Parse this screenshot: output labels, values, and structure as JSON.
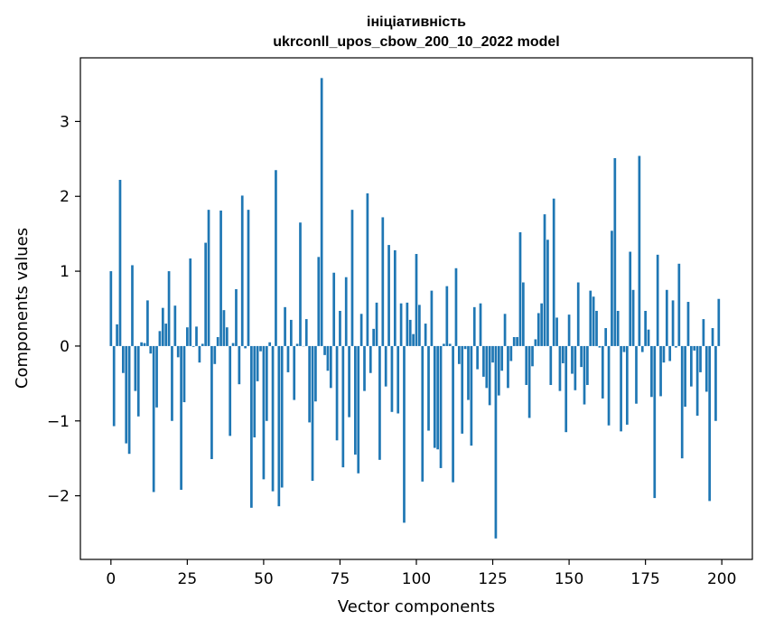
{
  "chart_data": {
    "type": "bar",
    "title": "ініціативність",
    "subtitle": "ukrconll_upos_cbow_200_10_2022 model",
    "xlabel": "Vector components",
    "ylabel": "Components values",
    "xlim": [
      -10,
      210
    ],
    "ylim": [
      -2.85,
      3.85
    ],
    "xticks": [
      0,
      25,
      50,
      75,
      100,
      125,
      150,
      175,
      200
    ],
    "yticks": [
      -2,
      -1,
      0,
      1,
      2,
      3
    ],
    "ytick_labels": [
      "−2",
      "−1",
      "0",
      "1",
      "2",
      "3"
    ],
    "bar_color": "#1f77b4",
    "grid": false,
    "x": [
      0,
      1,
      2,
      3,
      4,
      5,
      6,
      7,
      8,
      9,
      10,
      11,
      12,
      13,
      14,
      15,
      16,
      17,
      18,
      19,
      20,
      21,
      22,
      23,
      24,
      25,
      26,
      27,
      28,
      29,
      30,
      31,
      32,
      33,
      34,
      35,
      36,
      37,
      38,
      39,
      40,
      41,
      42,
      43,
      44,
      45,
      46,
      47,
      48,
      49,
      50,
      51,
      52,
      53,
      54,
      55,
      56,
      57,
      58,
      59,
      60,
      61,
      62,
      63,
      64,
      65,
      66,
      67,
      68,
      69,
      70,
      71,
      72,
      73,
      74,
      75,
      76,
      77,
      78,
      79,
      80,
      81,
      82,
      83,
      84,
      85,
      86,
      87,
      88,
      89,
      90,
      91,
      92,
      93,
      94,
      95,
      96,
      97,
      98,
      99,
      100,
      101,
      102,
      103,
      104,
      105,
      106,
      107,
      108,
      109,
      110,
      111,
      112,
      113,
      114,
      115,
      116,
      117,
      118,
      119,
      120,
      121,
      122,
      123,
      124,
      125,
      126,
      127,
      128,
      129,
      130,
      131,
      132,
      133,
      134,
      135,
      136,
      137,
      138,
      139,
      140,
      141,
      142,
      143,
      144,
      145,
      146,
      147,
      148,
      149,
      150,
      151,
      152,
      153,
      154,
      155,
      156,
      157,
      158,
      159,
      160,
      161,
      162,
      163,
      164,
      165,
      166,
      167,
      168,
      169,
      170,
      171,
      172,
      173,
      174,
      175,
      176,
      177,
      178,
      179,
      180,
      181,
      182,
      183,
      184,
      185,
      186,
      187,
      188,
      189,
      190,
      191,
      192,
      193,
      194,
      195,
      196,
      197,
      198,
      199
    ],
    "values": [
      1.0,
      -1.07,
      0.29,
      2.22,
      -0.36,
      -1.3,
      -1.44,
      1.08,
      -0.6,
      -0.94,
      0.05,
      0.04,
      0.61,
      -0.1,
      -1.95,
      -0.82,
      0.2,
      0.51,
      0.3,
      1.0,
      -1.0,
      0.54,
      -0.15,
      -1.92,
      -0.75,
      0.25,
      1.17,
      -0.01,
      0.26,
      -0.22,
      0.03,
      1.38,
      1.82,
      -1.51,
      -0.24,
      0.12,
      1.81,
      0.48,
      0.25,
      -1.2,
      0.04,
      0.76,
      -0.51,
      2.01,
      -0.03,
      1.82,
      -2.16,
      -1.22,
      -0.47,
      -0.07,
      -1.78,
      -1.0,
      0.05,
      -1.94,
      2.35,
      -2.14,
      -1.89,
      0.52,
      -0.35,
      0.35,
      -0.72,
      0.03,
      1.65,
      0.0,
      0.36,
      -1.02,
      -1.8,
      -0.74,
      1.19,
      3.58,
      -0.12,
      -0.33,
      -0.56,
      0.98,
      -1.26,
      0.47,
      -1.62,
      0.92,
      -0.95,
      1.82,
      -1.45,
      -1.7,
      0.43,
      -0.6,
      2.04,
      -0.36,
      0.23,
      0.58,
      -1.52,
      1.72,
      -0.54,
      1.35,
      -0.88,
      1.28,
      -0.9,
      0.57,
      -2.36,
      0.58,
      0.35,
      0.16,
      1.23,
      0.55,
      -1.81,
      0.3,
      -1.13,
      0.74,
      -1.36,
      -1.38,
      -1.63,
      0.03,
      0.8,
      0.03,
      -1.82,
      1.04,
      -0.24,
      -1.17,
      -0.04,
      -0.72,
      -1.33,
      0.52,
      -0.31,
      0.57,
      -0.41,
      -0.56,
      -0.79,
      -0.22,
      -2.57,
      -0.66,
      -0.33,
      0.43,
      -0.56,
      -0.2,
      0.12,
      0.12,
      1.52,
      0.85,
      -0.52,
      -0.96,
      -0.27,
      0.09,
      0.44,
      0.57,
      1.76,
      1.42,
      -0.52,
      1.97,
      0.38,
      -0.6,
      -0.23,
      -1.15,
      0.42,
      -0.37,
      -0.59,
      0.85,
      -0.28,
      -0.78,
      -0.52,
      0.74,
      0.66,
      0.47,
      -0.02,
      -0.7,
      0.24,
      -1.06,
      1.54,
      2.51,
      0.47,
      -1.14,
      -0.08,
      -1.05,
      1.26,
      0.75,
      -0.77,
      2.54,
      -0.08,
      0.47,
      0.22,
      -0.68,
      -2.03,
      1.22,
      -0.67,
      -0.22,
      0.75,
      -0.2,
      0.61,
      -0.02,
      1.1,
      -1.5,
      -0.81,
      0.59,
      -0.54,
      -0.06,
      -0.93,
      -0.35,
      0.36,
      -0.61,
      -2.07,
      0.24,
      -1.0,
      0.63
    ]
  }
}
